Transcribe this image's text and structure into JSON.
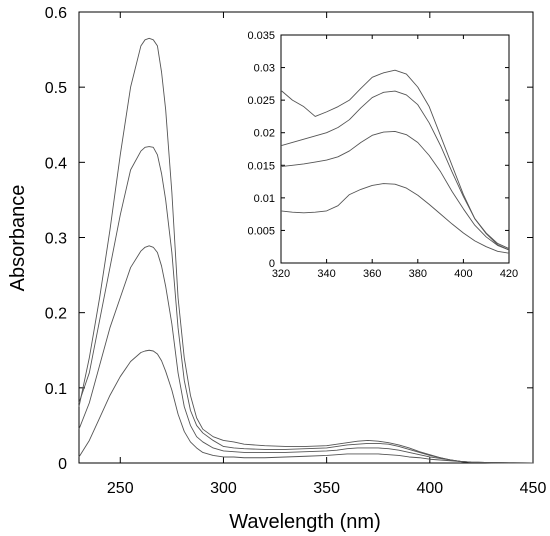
{
  "chart_data": [
    {
      "type": "line",
      "panel": "main",
      "xlabel": "Wavelength  (nm)",
      "ylabel": "Absorbance",
      "xlim": [
        230,
        450
      ],
      "ylim": [
        0,
        0.6
      ],
      "x_ticks": [
        250,
        300,
        350,
        400,
        450
      ],
      "y_ticks": [
        0,
        0.1,
        0.2,
        0.3,
        0.4,
        0.5,
        0.6
      ],
      "x_tick_labels": [
        "250",
        "300",
        "350",
        "400",
        "450"
      ],
      "y_tick_labels": [
        "0",
        "0.1",
        "0.2",
        "0.3",
        "0.4",
        "0.5",
        "0.6"
      ],
      "grid": false,
      "line_color": "#555555",
      "series": [
        {
          "x": [
            230,
            235,
            240,
            245,
            250,
            255,
            260,
            262,
            264,
            266,
            268,
            270,
            272,
            275,
            278,
            281,
            284,
            287,
            290,
            295,
            300,
            305,
            310,
            320,
            330,
            340,
            350,
            355,
            360,
            365,
            370,
            375,
            380,
            385,
            390,
            395,
            400,
            405,
            410,
            415,
            420,
            430,
            440,
            450
          ],
          "y": [
            0.075,
            0.14,
            0.22,
            0.31,
            0.41,
            0.5,
            0.555,
            0.563,
            0.565,
            0.563,
            0.555,
            0.52,
            0.47,
            0.36,
            0.22,
            0.14,
            0.09,
            0.06,
            0.045,
            0.035,
            0.03,
            0.028,
            0.025,
            0.023,
            0.022,
            0.022,
            0.023,
            0.025,
            0.027,
            0.029,
            0.03,
            0.029,
            0.027,
            0.024,
            0.02,
            0.015,
            0.011,
            0.007,
            0.004,
            0.002,
            0.001,
            0.0005,
            0.0002,
            0
          ]
        },
        {
          "x": [
            230,
            235,
            240,
            245,
            250,
            255,
            260,
            262,
            264,
            266,
            268,
            270,
            272,
            275,
            278,
            281,
            284,
            287,
            290,
            295,
            300,
            305,
            310,
            320,
            330,
            340,
            350,
            355,
            360,
            365,
            370,
            375,
            380,
            385,
            390,
            395,
            400,
            405,
            410,
            415,
            420,
            430,
            440,
            450
          ],
          "y": [
            0.08,
            0.12,
            0.19,
            0.26,
            0.33,
            0.39,
            0.415,
            0.42,
            0.421,
            0.42,
            0.41,
            0.385,
            0.35,
            0.28,
            0.18,
            0.11,
            0.07,
            0.05,
            0.04,
            0.03,
            0.022,
            0.02,
            0.019,
            0.018,
            0.018,
            0.019,
            0.02,
            0.022,
            0.024,
            0.025,
            0.026,
            0.026,
            0.025,
            0.022,
            0.018,
            0.014,
            0.01,
            0.007,
            0.004,
            0.002,
            0.001,
            0.0005,
            0.0002,
            0
          ]
        },
        {
          "x": [
            230,
            235,
            240,
            245,
            250,
            255,
            260,
            262,
            264,
            266,
            268,
            270,
            272,
            275,
            278,
            281,
            284,
            287,
            290,
            295,
            300,
            305,
            310,
            320,
            330,
            340,
            350,
            355,
            360,
            365,
            370,
            375,
            380,
            385,
            390,
            395,
            400,
            405,
            410,
            415,
            420,
            430,
            440,
            450
          ],
          "y": [
            0.045,
            0.08,
            0.13,
            0.18,
            0.22,
            0.26,
            0.282,
            0.287,
            0.289,
            0.287,
            0.28,
            0.262,
            0.235,
            0.185,
            0.12,
            0.075,
            0.05,
            0.035,
            0.028,
            0.02,
            0.016,
            0.015,
            0.014,
            0.014,
            0.014,
            0.015,
            0.016,
            0.017,
            0.019,
            0.02,
            0.02,
            0.02,
            0.019,
            0.017,
            0.014,
            0.011,
            0.008,
            0.006,
            0.004,
            0.002,
            0.001,
            0.0005,
            0.0002,
            0
          ]
        },
        {
          "x": [
            230,
            235,
            240,
            245,
            250,
            255,
            260,
            262,
            264,
            266,
            268,
            270,
            272,
            275,
            278,
            281,
            284,
            287,
            290,
            295,
            300,
            305,
            310,
            320,
            330,
            340,
            350,
            355,
            360,
            365,
            370,
            375,
            380,
            385,
            390,
            395,
            400,
            405,
            410,
            415,
            420,
            430,
            440,
            450
          ],
          "y": [
            0.008,
            0.03,
            0.06,
            0.09,
            0.115,
            0.135,
            0.147,
            0.149,
            0.15,
            0.149,
            0.145,
            0.136,
            0.122,
            0.097,
            0.065,
            0.042,
            0.028,
            0.02,
            0.014,
            0.01,
            0.008,
            0.008,
            0.007,
            0.007,
            0.008,
            0.009,
            0.01,
            0.011,
            0.012,
            0.012,
            0.012,
            0.012,
            0.011,
            0.01,
            0.008,
            0.007,
            0.005,
            0.004,
            0.003,
            0.002,
            0.001,
            0.0005,
            0.0002,
            0
          ]
        }
      ]
    },
    {
      "type": "line",
      "panel": "inset",
      "xlabel": "",
      "ylabel": "",
      "xlim": [
        320,
        420
      ],
      "ylim": [
        0,
        0.035
      ],
      "x_ticks": [
        320,
        340,
        360,
        380,
        400,
        420
      ],
      "y_ticks": [
        0,
        0.005,
        0.01,
        0.015,
        0.02,
        0.025,
        0.03,
        0.035
      ],
      "x_tick_labels": [
        "320",
        "340",
        "360",
        "380",
        "400",
        "420"
      ],
      "y_tick_labels": [
        "0",
        "0.005",
        "0.01",
        "0.015",
        "0.02",
        "0.025",
        "0.03",
        "0.035"
      ],
      "grid": false,
      "line_color": "#555555",
      "series": [
        {
          "x": [
            320,
            325,
            330,
            335,
            340,
            345,
            350,
            355,
            360,
            365,
            370,
            375,
            380,
            385,
            390,
            395,
            400,
            405,
            410,
            415,
            420
          ],
          "y": [
            0.0265,
            0.025,
            0.024,
            0.0225,
            0.0232,
            0.024,
            0.025,
            0.0268,
            0.0285,
            0.0292,
            0.0296,
            0.029,
            0.027,
            0.024,
            0.0195,
            0.015,
            0.0105,
            0.0068,
            0.0045,
            0.0028,
            0.002
          ]
        },
        {
          "x": [
            320,
            325,
            330,
            335,
            340,
            345,
            350,
            355,
            360,
            365,
            370,
            375,
            380,
            385,
            390,
            395,
            400,
            405,
            410,
            415,
            420
          ],
          "y": [
            0.018,
            0.0185,
            0.019,
            0.0195,
            0.02,
            0.0208,
            0.022,
            0.0238,
            0.0254,
            0.0262,
            0.0264,
            0.0258,
            0.0243,
            0.0215,
            0.018,
            0.014,
            0.0102,
            0.0068,
            0.0046,
            0.003,
            0.0022
          ]
        },
        {
          "x": [
            320,
            325,
            330,
            335,
            340,
            345,
            350,
            355,
            360,
            365,
            370,
            375,
            380,
            385,
            390,
            395,
            400,
            405,
            410,
            415,
            420
          ],
          "y": [
            0.0148,
            0.015,
            0.0152,
            0.0155,
            0.0158,
            0.0163,
            0.0172,
            0.0185,
            0.0196,
            0.0201,
            0.0202,
            0.0197,
            0.0185,
            0.0165,
            0.014,
            0.011,
            0.0083,
            0.0058,
            0.004,
            0.0027,
            0.002
          ]
        },
        {
          "x": [
            320,
            325,
            330,
            335,
            340,
            345,
            350,
            355,
            360,
            365,
            370,
            375,
            380,
            385,
            390,
            395,
            400,
            405,
            410,
            415,
            420
          ],
          "y": [
            0.008,
            0.0078,
            0.0077,
            0.0078,
            0.008,
            0.0088,
            0.0105,
            0.0113,
            0.0119,
            0.0122,
            0.0121,
            0.0115,
            0.0104,
            0.009,
            0.0075,
            0.006,
            0.0046,
            0.0034,
            0.0025,
            0.0018,
            0.0015
          ]
        }
      ]
    }
  ]
}
